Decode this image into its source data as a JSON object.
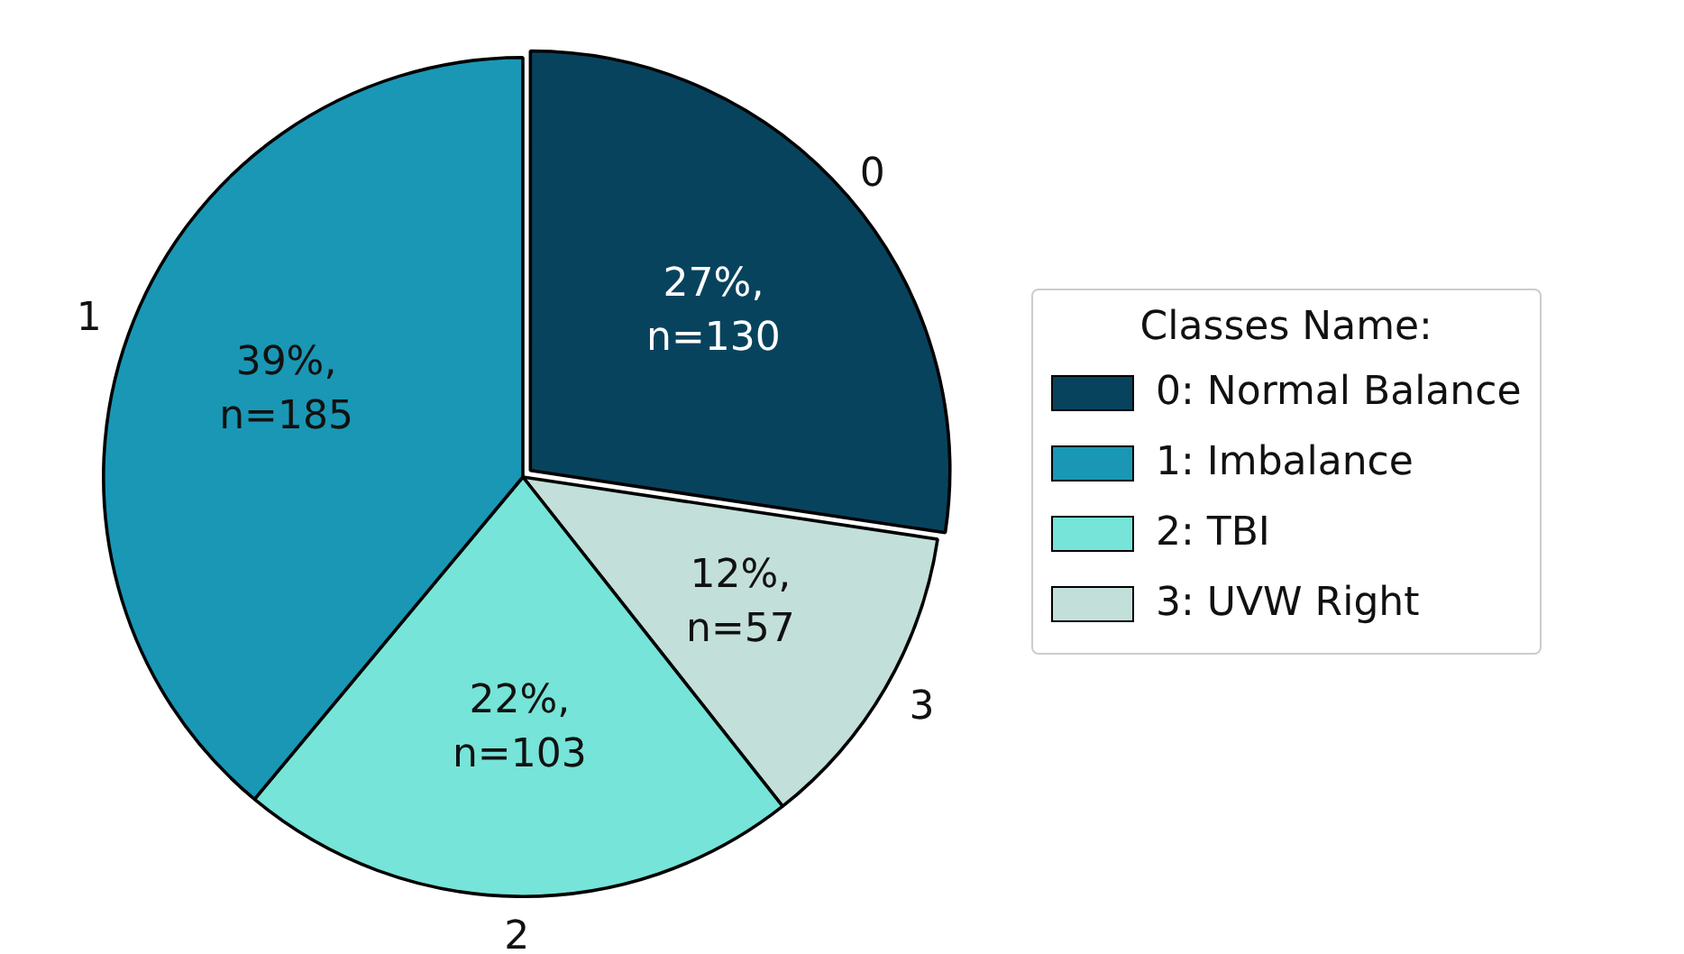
{
  "chart_data": {
    "type": "pie",
    "categories": [
      "0: Normal Balance",
      "1: Imbalance",
      "2: TBI",
      "3: UVW Right"
    ],
    "values": [
      130,
      185,
      103,
      57
    ],
    "colors": [
      "#08435e",
      "#1a97b5",
      "#76e4d8",
      "#c3dfd9"
    ],
    "value_labels": [
      "27%,\nn=130",
      "39%,\nn=185",
      "22%,\nn=103",
      "12%,\nn=57"
    ],
    "legend": "right",
    "legend_title": "Classes Name:",
    "annotations": [
      {
        "text": "0",
        "x": "0: Normal Balance"
      },
      {
        "text": "1",
        "x": "1: Imbalance"
      },
      {
        "text": "2",
        "x": "2: TBI"
      },
      {
        "text": "3",
        "x": "3: UVW Right"
      }
    ]
  }
}
